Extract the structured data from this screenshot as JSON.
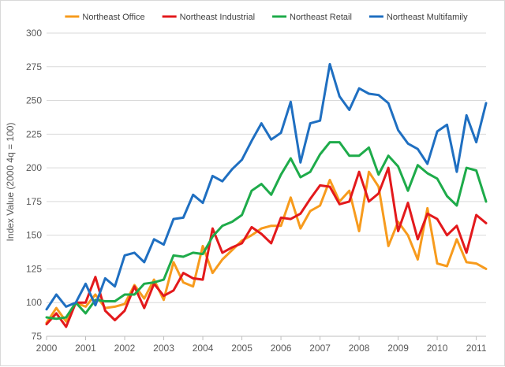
{
  "chart_data": {
    "type": "line",
    "title": "",
    "xlabel": "",
    "ylabel": "Index Value (2000 4q = 100)",
    "ylim": [
      75,
      300
    ],
    "yticks": [
      75,
      100,
      125,
      150,
      175,
      200,
      225,
      250,
      275,
      300
    ],
    "xlim": [
      2000,
      2011.25
    ],
    "xticks": [
      2000,
      2001,
      2002,
      2003,
      2004,
      2005,
      2006,
      2007,
      2008,
      2009,
      2010,
      2011
    ],
    "grid": true,
    "legend_position": "top",
    "x": [
      2000.0,
      2000.25,
      2000.5,
      2000.75,
      2001.0,
      2001.25,
      2001.5,
      2001.75,
      2002.0,
      2002.25,
      2002.5,
      2002.75,
      2003.0,
      2003.25,
      2003.5,
      2003.75,
      2004.0,
      2004.25,
      2004.5,
      2004.75,
      2005.0,
      2005.25,
      2005.5,
      2005.75,
      2006.0,
      2006.25,
      2006.5,
      2006.75,
      2007.0,
      2007.25,
      2007.5,
      2007.75,
      2008.0,
      2008.25,
      2008.5,
      2008.75,
      2009.0,
      2009.25,
      2009.5,
      2009.75,
      2010.0,
      2010.25,
      2010.5,
      2010.75,
      2011.0,
      2011.25
    ],
    "series": [
      {
        "name": "Northeast Office",
        "color": "#f79b1d",
        "values": [
          85,
          96,
          86,
          100,
          97,
          106,
          96,
          97,
          99,
          113,
          103,
          117,
          102,
          130,
          115,
          112,
          142,
          122,
          132,
          139,
          146,
          150,
          155,
          157,
          157,
          178,
          155,
          168,
          172,
          191,
          175,
          183,
          153,
          197,
          186,
          142,
          160,
          150,
          132,
          170,
          129,
          127,
          147,
          130,
          129,
          125
        ]
      },
      {
        "name": "Northeast Industrial",
        "color": "#e3191c",
        "values": [
          84,
          92,
          82,
          100,
          100,
          119,
          94,
          87,
          94,
          112,
          96,
          114,
          105,
          109,
          122,
          118,
          117,
          155,
          137,
          141,
          144,
          156,
          151,
          144,
          163,
          162,
          166,
          177,
          187,
          186,
          173,
          175,
          197,
          175,
          181,
          200,
          153,
          174,
          147,
          166,
          162,
          150,
          157,
          137,
          165,
          159
        ]
      },
      {
        "name": "Northeast Retail",
        "color": "#1eab4a",
        "values": [
          89,
          88,
          89,
          100,
          92,
          102,
          101,
          101,
          106,
          106,
          114,
          115,
          117,
          135,
          134,
          137,
          136,
          149,
          157,
          160,
          165,
          183,
          188,
          180,
          195,
          207,
          193,
          197,
          210,
          219,
          219,
          209,
          209,
          215,
          195,
          209,
          201,
          183,
          202,
          196,
          192,
          179,
          172,
          200,
          198,
          175
        ]
      },
      {
        "name": "Northeast Multifamily",
        "color": "#1f6fc1",
        "values": [
          95,
          106,
          97,
          100,
          114,
          98,
          118,
          112,
          135,
          137,
          130,
          147,
          143,
          162,
          163,
          180,
          174,
          194,
          190,
          199,
          206,
          220,
          233,
          221,
          226,
          249,
          204,
          233,
          235,
          277,
          253,
          243,
          259,
          255,
          254,
          248,
          228,
          218,
          214,
          203,
          227,
          232,
          197,
          239,
          219,
          248
        ]
      }
    ]
  }
}
